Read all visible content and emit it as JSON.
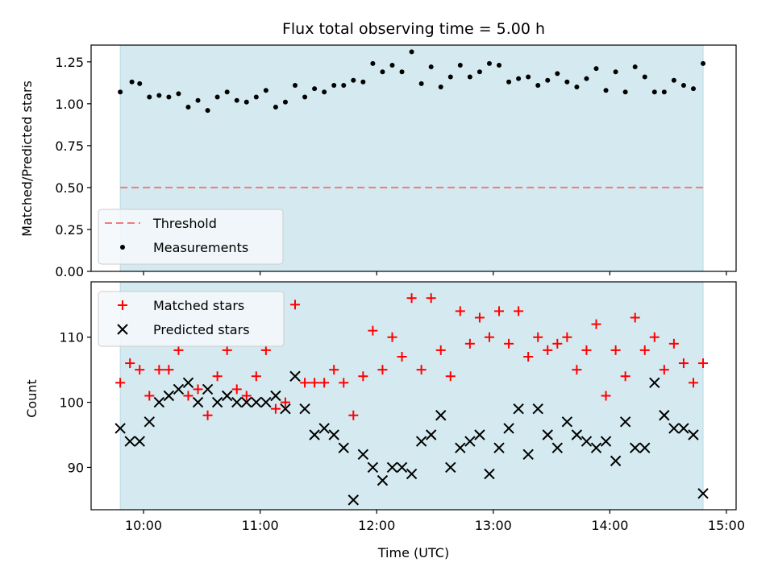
{
  "colors": {
    "shade": "#d4eaf0",
    "threshold": "#f07b7b",
    "measurement": "#000000",
    "matched": "#ff0000",
    "predicted": "#000000"
  },
  "chart_data": [
    {
      "type": "scatter",
      "title": "Flux total observing time = 5.00 h",
      "ylabel": "Matched/Predicted stars",
      "xlabel": "",
      "xlim": [
        "09:33",
        "15:05"
      ],
      "ylim": [
        0,
        1.35
      ],
      "yticks": [
        0.0,
        0.25,
        0.5,
        0.75,
        1.0,
        1.25
      ],
      "ytick_labels": [
        "0.00",
        "0.25",
        "0.50",
        "0.75",
        "1.00",
        "1.25"
      ],
      "shaded_span": [
        "09:48",
        "14:48"
      ],
      "threshold": 0.5,
      "legend": {
        "placement": "lower-left",
        "entries": [
          "Threshold",
          "Measurements"
        ]
      },
      "series": [
        {
          "name": "Measurements",
          "points": [
            [
              "09:48",
              1.07
            ],
            [
              "09:54",
              1.13
            ],
            [
              "09:58",
              1.12
            ],
            [
              "10:03",
              1.04
            ],
            [
              "10:08",
              1.05
            ],
            [
              "10:13",
              1.04
            ],
            [
              "10:18",
              1.06
            ],
            [
              "10:23",
              0.98
            ],
            [
              "10:28",
              1.02
            ],
            [
              "10:33",
              0.96
            ],
            [
              "10:38",
              1.04
            ],
            [
              "10:43",
              1.07
            ],
            [
              "10:48",
              1.02
            ],
            [
              "10:53",
              1.01
            ],
            [
              "10:58",
              1.04
            ],
            [
              "11:03",
              1.08
            ],
            [
              "11:08",
              0.98
            ],
            [
              "11:13",
              1.01
            ],
            [
              "11:18",
              1.11
            ],
            [
              "11:23",
              1.04
            ],
            [
              "11:28",
              1.09
            ],
            [
              "11:33",
              1.07
            ],
            [
              "11:38",
              1.11
            ],
            [
              "11:43",
              1.11
            ],
            [
              "11:48",
              1.14
            ],
            [
              "11:53",
              1.13
            ],
            [
              "11:58",
              1.24
            ],
            [
              "12:03",
              1.19
            ],
            [
              "12:08",
              1.23
            ],
            [
              "12:13",
              1.19
            ],
            [
              "12:18",
              1.31
            ],
            [
              "12:23",
              1.12
            ],
            [
              "12:28",
              1.22
            ],
            [
              "12:33",
              1.1
            ],
            [
              "12:38",
              1.16
            ],
            [
              "12:43",
              1.23
            ],
            [
              "12:48",
              1.16
            ],
            [
              "12:53",
              1.19
            ],
            [
              "12:58",
              1.24
            ],
            [
              "13:03",
              1.23
            ],
            [
              "13:08",
              1.13
            ],
            [
              "13:13",
              1.15
            ],
            [
              "13:18",
              1.16
            ],
            [
              "13:23",
              1.11
            ],
            [
              "13:28",
              1.14
            ],
            [
              "13:33",
              1.18
            ],
            [
              "13:38",
              1.13
            ],
            [
              "13:43",
              1.1
            ],
            [
              "13:48",
              1.15
            ],
            [
              "13:53",
              1.21
            ],
            [
              "13:58",
              1.08
            ],
            [
              "14:03",
              1.19
            ],
            [
              "14:08",
              1.07
            ],
            [
              "14:13",
              1.22
            ],
            [
              "14:18",
              1.16
            ],
            [
              "14:23",
              1.07
            ],
            [
              "14:28",
              1.07
            ],
            [
              "14:33",
              1.14
            ],
            [
              "14:38",
              1.11
            ],
            [
              "14:43",
              1.09
            ],
            [
              "14:48",
              1.24
            ]
          ]
        }
      ]
    },
    {
      "type": "scatter",
      "title": "",
      "xlabel": "Time (UTC)",
      "ylabel": "Count",
      "xlim": [
        "09:33",
        "15:05"
      ],
      "ylim": [
        83.5,
        118.5
      ],
      "yticks": [
        90,
        100,
        110
      ],
      "ytick_labels": [
        "90",
        "100",
        "110"
      ],
      "xticks": [
        "10:00",
        "11:00",
        "12:00",
        "13:00",
        "14:00",
        "15:00"
      ],
      "shaded_span": [
        "09:48",
        "14:48"
      ],
      "legend": {
        "placement": "top-left",
        "entries": [
          "Matched stars",
          "Predicted stars"
        ]
      },
      "series": [
        {
          "name": "Matched stars",
          "points": [
            [
              "09:48",
              103
            ],
            [
              "09:53",
              106
            ],
            [
              "09:58",
              105
            ],
            [
              "10:03",
              101
            ],
            [
              "10:08",
              105
            ],
            [
              "10:13",
              105
            ],
            [
              "10:18",
              108
            ],
            [
              "10:23",
              101
            ],
            [
              "10:28",
              102
            ],
            [
              "10:33",
              98
            ],
            [
              "10:38",
              104
            ],
            [
              "10:43",
              108
            ],
            [
              "10:48",
              102
            ],
            [
              "10:53",
              101
            ],
            [
              "10:58",
              104
            ],
            [
              "11:03",
              108
            ],
            [
              "11:08",
              99
            ],
            [
              "11:13",
              100
            ],
            [
              "11:18",
              115
            ],
            [
              "11:23",
              103
            ],
            [
              "11:28",
              103
            ],
            [
              "11:33",
              103
            ],
            [
              "11:38",
              105
            ],
            [
              "11:43",
              103
            ],
            [
              "11:48",
              98
            ],
            [
              "11:53",
              104
            ],
            [
              "11:58",
              111
            ],
            [
              "12:03",
              105
            ],
            [
              "12:08",
              110
            ],
            [
              "12:13",
              107
            ],
            [
              "12:18",
              116
            ],
            [
              "12:23",
              105
            ],
            [
              "12:28",
              116
            ],
            [
              "12:33",
              108
            ],
            [
              "12:38",
              104
            ],
            [
              "12:43",
              114
            ],
            [
              "12:48",
              109
            ],
            [
              "12:53",
              113
            ],
            [
              "12:58",
              110
            ],
            [
              "13:03",
              114
            ],
            [
              "13:08",
              109
            ],
            [
              "13:13",
              114
            ],
            [
              "13:18",
              107
            ],
            [
              "13:23",
              110
            ],
            [
              "13:28",
              108
            ],
            [
              "13:33",
              109
            ],
            [
              "13:38",
              110
            ],
            [
              "13:43",
              105
            ],
            [
              "13:48",
              108
            ],
            [
              "13:53",
              112
            ],
            [
              "13:58",
              101
            ],
            [
              "14:03",
              108
            ],
            [
              "14:08",
              104
            ],
            [
              "14:13",
              113
            ],
            [
              "14:18",
              108
            ],
            [
              "14:23",
              110
            ],
            [
              "14:28",
              105
            ],
            [
              "14:33",
              109
            ],
            [
              "14:38",
              106
            ],
            [
              "14:43",
              103
            ],
            [
              "14:48",
              106
            ]
          ]
        },
        {
          "name": "Predicted stars",
          "points": [
            [
              "09:48",
              96
            ],
            [
              "09:53",
              94
            ],
            [
              "09:58",
              94
            ],
            [
              "10:03",
              97
            ],
            [
              "10:08",
              100
            ],
            [
              "10:13",
              101
            ],
            [
              "10:18",
              102
            ],
            [
              "10:23",
              103
            ],
            [
              "10:28",
              100
            ],
            [
              "10:33",
              102
            ],
            [
              "10:38",
              100
            ],
            [
              "10:43",
              101
            ],
            [
              "10:48",
              100
            ],
            [
              "10:53",
              100
            ],
            [
              "10:58",
              100
            ],
            [
              "11:03",
              100
            ],
            [
              "11:08",
              101
            ],
            [
              "11:13",
              99
            ],
            [
              "11:18",
              104
            ],
            [
              "11:23",
              99
            ],
            [
              "11:28",
              95
            ],
            [
              "11:33",
              96
            ],
            [
              "11:38",
              95
            ],
            [
              "11:43",
              93
            ],
            [
              "11:48",
              85
            ],
            [
              "11:53",
              92
            ],
            [
              "11:58",
              90
            ],
            [
              "12:03",
              88
            ],
            [
              "12:08",
              90
            ],
            [
              "12:13",
              90
            ],
            [
              "12:18",
              89
            ],
            [
              "12:23",
              94
            ],
            [
              "12:28",
              95
            ],
            [
              "12:33",
              98
            ],
            [
              "12:38",
              90
            ],
            [
              "12:43",
              93
            ],
            [
              "12:48",
              94
            ],
            [
              "12:53",
              95
            ],
            [
              "12:58",
              89
            ],
            [
              "13:03",
              93
            ],
            [
              "13:08",
              96
            ],
            [
              "13:13",
              99
            ],
            [
              "13:18",
              92
            ],
            [
              "13:23",
              99
            ],
            [
              "13:28",
              95
            ],
            [
              "13:33",
              93
            ],
            [
              "13:38",
              97
            ],
            [
              "13:43",
              95
            ],
            [
              "13:48",
              94
            ],
            [
              "13:53",
              93
            ],
            [
              "13:58",
              94
            ],
            [
              "14:03",
              91
            ],
            [
              "14:08",
              97
            ],
            [
              "14:13",
              93
            ],
            [
              "14:18",
              93
            ],
            [
              "14:23",
              103
            ],
            [
              "14:28",
              98
            ],
            [
              "14:33",
              96
            ],
            [
              "14:38",
              96
            ],
            [
              "14:43",
              95
            ],
            [
              "14:48",
              86
            ]
          ]
        }
      ]
    }
  ]
}
